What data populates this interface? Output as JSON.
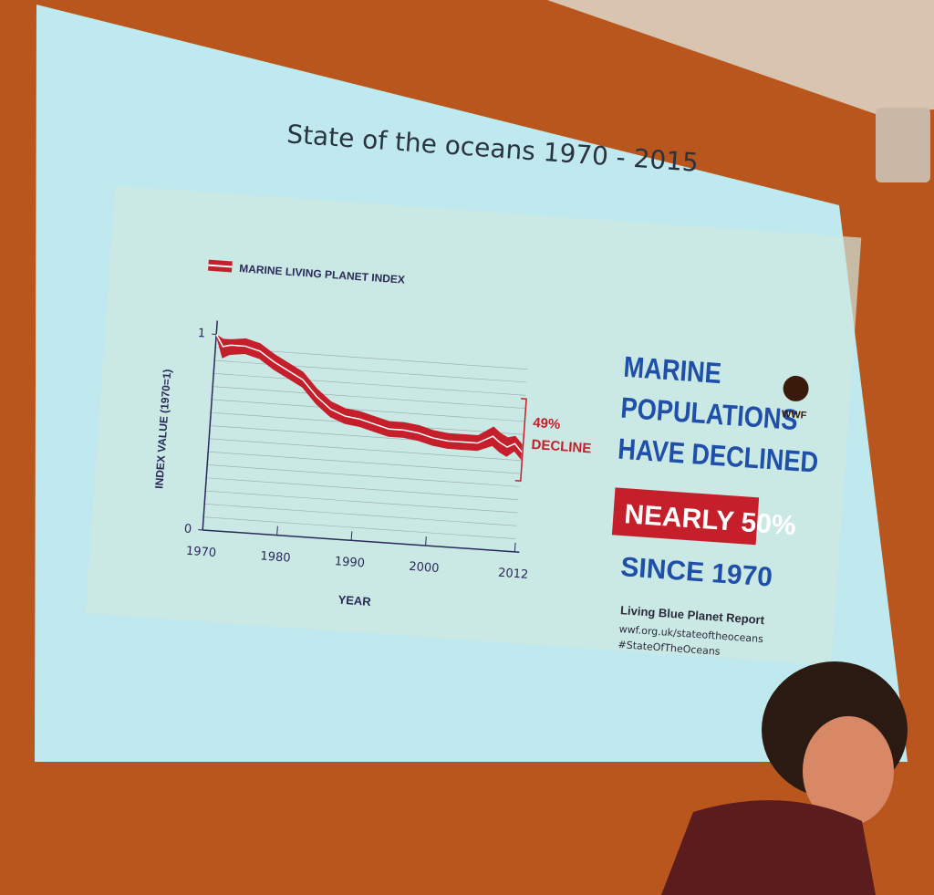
{
  "chart_data": {
    "type": "line",
    "title": "State of the oceans 1970 - 2015",
    "xlabel": "YEAR",
    "ylabel": "INDEX VALUE (1970=1)",
    "annotation": [
      "49%",
      "DECLINE"
    ],
    "x": [
      1970,
      1971,
      1972,
      1974,
      1976,
      1978,
      1980,
      1982,
      1984,
      1986,
      1988,
      1990,
      1992,
      1994,
      1996,
      1998,
      2000,
      2002,
      2004,
      2006,
      2008,
      2009,
      2010,
      2011,
      2012
    ],
    "series": [
      {
        "name": "MARINE LIVING PLANET INDEX",
        "color": "#c41f2a",
        "values": [
          1.0,
          0.94,
          0.95,
          0.95,
          0.93,
          0.88,
          0.84,
          0.8,
          0.72,
          0.66,
          0.63,
          0.62,
          0.6,
          0.58,
          0.58,
          0.57,
          0.55,
          0.54,
          0.54,
          0.54,
          0.58,
          0.55,
          0.53,
          0.55,
          0.51
        ],
        "upper": [
          1.0,
          0.98,
          0.98,
          0.99,
          0.97,
          0.92,
          0.88,
          0.84,
          0.76,
          0.7,
          0.67,
          0.66,
          0.64,
          0.62,
          0.62,
          0.61,
          0.59,
          0.58,
          0.58,
          0.58,
          0.63,
          0.6,
          0.58,
          0.59,
          0.55
        ],
        "lower": [
          0.99,
          0.88,
          0.9,
          0.91,
          0.89,
          0.84,
          0.8,
          0.76,
          0.68,
          0.62,
          0.59,
          0.58,
          0.56,
          0.54,
          0.54,
          0.53,
          0.51,
          0.5,
          0.5,
          0.5,
          0.53,
          0.5,
          0.48,
          0.51,
          0.47
        ]
      }
    ],
    "xlim": [
      1970,
      2012
    ],
    "ylim": [
      0,
      1
    ],
    "xticks": [
      1970,
      1980,
      1990,
      2000,
      2012
    ],
    "yticks": [
      0,
      1
    ],
    "grid": true
  },
  "side_panel": {
    "headline": [
      "MARINE",
      "POPULATIONS",
      "HAVE DECLINED"
    ],
    "highlight": "NEARLY 50%",
    "since": "SINCE 1970",
    "report": "Living Blue Planet Report",
    "url": "wwf.org.uk/stateoftheoceans",
    "hashtag": "#StateOfTheOceans",
    "logo": "WWF"
  }
}
